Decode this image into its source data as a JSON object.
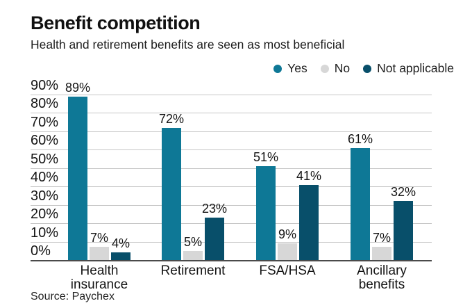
{
  "header": {
    "title": "Benefit competition",
    "subtitle": "Health and retirement benefits are seen as most beneficial"
  },
  "legend": [
    {
      "label": "Yes",
      "color": "#0E7896"
    },
    {
      "label": "No",
      "color": "#D7D7D7"
    },
    {
      "label": "Not applicable",
      "color": "#084F6A"
    }
  ],
  "source": "Source: Paychex",
  "colors": {
    "yes": "#0E7896",
    "no": "#D7D7D7",
    "not_applicable": "#084F6A",
    "gridline": "#C6C6C6",
    "axis": "#4A4A4A",
    "text": "#141414"
  },
  "chart_data": {
    "type": "bar",
    "title": "Benefit competition",
    "subtitle": "Health and retirement benefits are seen as most beneficial",
    "categories": [
      "Health insurance",
      "Retirement",
      "FSA/HSA",
      "Ancillary benefits"
    ],
    "series": [
      {
        "name": "Yes",
        "color": "#0E7896",
        "values": [
          89,
          72,
          51,
          61
        ]
      },
      {
        "name": "No",
        "color": "#D7D7D7",
        "values": [
          7,
          5,
          9,
          7
        ]
      },
      {
        "name": "Not applicable",
        "color": "#084F6A",
        "values": [
          4,
          23,
          41,
          32
        ]
      }
    ],
    "value_label_suffix": "%",
    "xlabel": "",
    "ylabel": "",
    "ylim": [
      0,
      90
    ],
    "ytick_step": 10,
    "yticks": [
      "0%",
      "10%",
      "20%",
      "30%",
      "40%",
      "50%",
      "60%",
      "70%",
      "80%",
      "90%"
    ],
    "grid": true,
    "legend_position": "top-right",
    "source": "Source: Paychex"
  }
}
